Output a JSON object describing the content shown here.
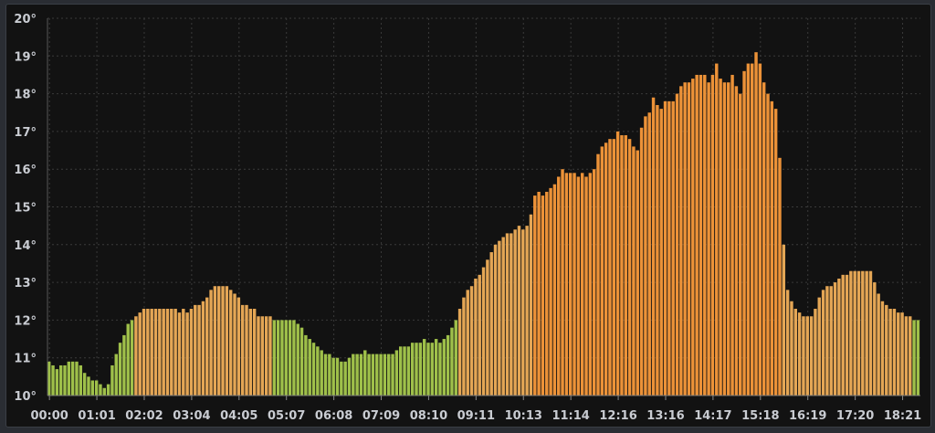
{
  "chart_data": {
    "type": "bar",
    "title": "",
    "xlabel": "",
    "ylabel": "",
    "unit": "°",
    "ylim": [
      10,
      20
    ],
    "yticks": [
      "10°",
      "11°",
      "12°",
      "13°",
      "14°",
      "15°",
      "16°",
      "17°",
      "18°",
      "19°",
      "20°"
    ],
    "xticks": [
      "00:00",
      "01:01",
      "02:02",
      "03:04",
      "04:05",
      "05:07",
      "06:08",
      "07:09",
      "08:10",
      "09:11",
      "10:13",
      "11:14",
      "12:16",
      "13:16",
      "14:17",
      "15:18",
      "16:19",
      "17:20",
      "18:21"
    ],
    "bar_interval_minutes": 5,
    "grid": true,
    "thresholds": [
      {
        "max": 12.05,
        "color": "#9fc04a"
      },
      {
        "max": 15.0,
        "color": "#e4a655"
      },
      {
        "max": 99,
        "color": "#ec9238"
      }
    ],
    "values": [
      10.9,
      10.8,
      10.7,
      10.8,
      10.8,
      10.9,
      10.9,
      10.9,
      10.8,
      10.6,
      10.5,
      10.4,
      10.4,
      10.3,
      10.2,
      10.3,
      10.8,
      11.1,
      11.4,
      11.6,
      11.9,
      12.0,
      12.1,
      12.2,
      12.3,
      12.3,
      12.3,
      12.3,
      12.3,
      12.3,
      12.3,
      12.3,
      12.3,
      12.2,
      12.3,
      12.2,
      12.3,
      12.4,
      12.4,
      12.5,
      12.6,
      12.8,
      12.9,
      12.9,
      12.9,
      12.9,
      12.8,
      12.7,
      12.6,
      12.4,
      12.4,
      12.3,
      12.3,
      12.1,
      12.1,
      12.1,
      12.1,
      12.0,
      12.0,
      12.0,
      12.0,
      12.0,
      12.0,
      11.9,
      11.8,
      11.6,
      11.5,
      11.4,
      11.3,
      11.2,
      11.1,
      11.1,
      11.0,
      11.0,
      10.9,
      10.9,
      11.0,
      11.1,
      11.1,
      11.1,
      11.2,
      11.1,
      11.1,
      11.1,
      11.1,
      11.1,
      11.1,
      11.1,
      11.2,
      11.3,
      11.3,
      11.3,
      11.4,
      11.4,
      11.4,
      11.5,
      11.4,
      11.4,
      11.5,
      11.4,
      11.5,
      11.6,
      11.8,
      12.0,
      12.3,
      12.6,
      12.8,
      12.9,
      13.1,
      13.2,
      13.4,
      13.6,
      13.8,
      14.0,
      14.1,
      14.2,
      14.3,
      14.3,
      14.4,
      14.5,
      14.4,
      14.5,
      14.8,
      15.3,
      15.4,
      15.3,
      15.4,
      15.5,
      15.6,
      15.8,
      16.0,
      15.9,
      15.9,
      15.9,
      15.8,
      15.9,
      15.8,
      15.9,
      16.0,
      16.4,
      16.6,
      16.7,
      16.8,
      16.8,
      17.0,
      16.9,
      16.9,
      16.8,
      16.6,
      16.5,
      17.1,
      17.4,
      17.5,
      17.9,
      17.7,
      17.6,
      17.8,
      17.8,
      17.8,
      18.0,
      18.2,
      18.3,
      18.3,
      18.4,
      18.5,
      18.5,
      18.5,
      18.3,
      18.5,
      18.8,
      18.4,
      18.3,
      18.3,
      18.5,
      18.2,
      18.0,
      18.6,
      18.8,
      18.8,
      19.1,
      18.8,
      18.3,
      18.0,
      17.8,
      17.6,
      16.3,
      14.0,
      12.8,
      12.5,
      12.3,
      12.2,
      12.1,
      12.1,
      12.1,
      12.3,
      12.6,
      12.8,
      12.9,
      12.9,
      13.0,
      13.1,
      13.2,
      13.2,
      13.3,
      13.3,
      13.3,
      13.3,
      13.3,
      13.3,
      13.0,
      12.7,
      12.5,
      12.4,
      12.3,
      12.3,
      12.2,
      12.2,
      12.1,
      12.1,
      12.0,
      12.0
    ]
  }
}
